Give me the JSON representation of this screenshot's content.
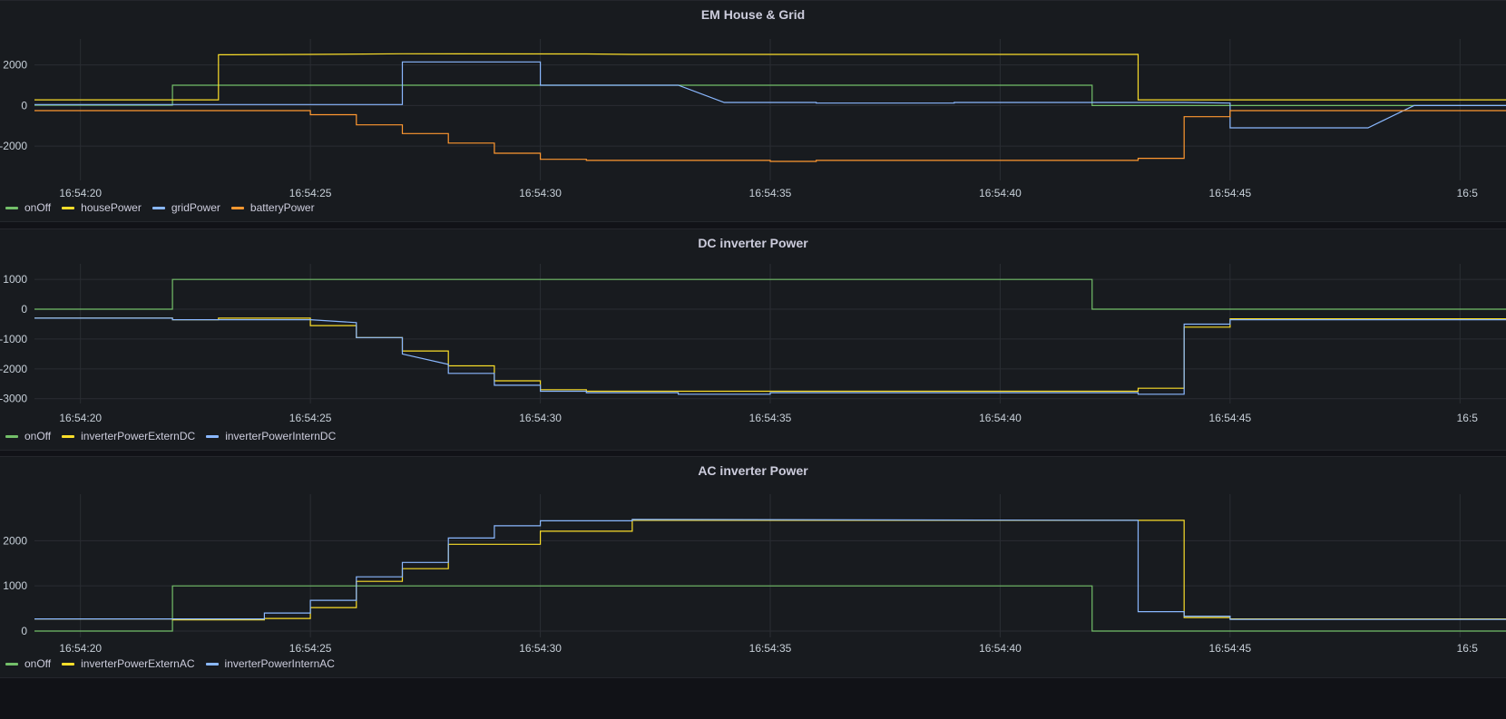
{
  "chart_data": [
    {
      "type": "line",
      "title": "EM House & Grid",
      "yticks": [
        2000,
        0,
        -2000
      ],
      "ylim": [
        -3600,
        3100
      ],
      "xticks": [
        "16:54:20",
        "16:54:25",
        "16:54:30",
        "16:54:35",
        "16:54:40",
        "16:54:45",
        "16:5"
      ],
      "grid": true,
      "legend_position": "bottom-left",
      "series": [
        {
          "name": "onOff",
          "color": "#73bf69",
          "step": true,
          "points": [
            [
              19,
              20
            ],
            [
              22,
              20
            ],
            [
              22,
              1000
            ],
            [
              42,
              1000
            ],
            [
              42,
              0
            ],
            [
              51,
              0
            ]
          ]
        },
        {
          "name": "housePower",
          "color": "#fade2a",
          "step": true,
          "points": [
            [
              19,
              280
            ],
            [
              23,
              280
            ],
            [
              23,
              2500
            ],
            [
              25,
              2520
            ],
            [
              27,
              2550
            ],
            [
              31,
              2540
            ],
            [
              32,
              2520
            ],
            [
              43,
              2520
            ],
            [
              43,
              280
            ],
            [
              51,
              280
            ]
          ]
        },
        {
          "name": "gridPower",
          "color": "#8ab8ff",
          "step": true,
          "points": [
            [
              19,
              50
            ],
            [
              22,
              50
            ],
            [
              27,
              50
            ],
            [
              27,
              2150
            ],
            [
              30,
              2150
            ],
            [
              30,
              1000
            ],
            [
              33,
              1000
            ],
            [
              34,
              150
            ],
            [
              36,
              150
            ],
            [
              36,
              120
            ],
            [
              39,
              120
            ],
            [
              39,
              150
            ],
            [
              44,
              150
            ],
            [
              45,
              120
            ],
            [
              45,
              -1100
            ],
            [
              48,
              -1100
            ],
            [
              49,
              0
            ],
            [
              51,
              0
            ]
          ]
        },
        {
          "name": "batteryPower",
          "color": "#ff9830",
          "step": true,
          "points": [
            [
              19,
              -250
            ],
            [
              25,
              -250
            ],
            [
              25,
              -450
            ],
            [
              26,
              -450
            ],
            [
              26,
              -950
            ],
            [
              27,
              -950
            ],
            [
              27,
              -1380
            ],
            [
              28,
              -1380
            ],
            [
              28,
              -1850
            ],
            [
              29,
              -1850
            ],
            [
              29,
              -2350
            ],
            [
              30,
              -2350
            ],
            [
              30,
              -2650
            ],
            [
              31,
              -2650
            ],
            [
              31,
              -2700
            ],
            [
              35,
              -2700
            ],
            [
              35,
              -2750
            ],
            [
              36,
              -2750
            ],
            [
              36,
              -2700
            ],
            [
              43,
              -2700
            ],
            [
              43,
              -2600
            ],
            [
              44,
              -2600
            ],
            [
              44,
              -550
            ],
            [
              45,
              -550
            ],
            [
              45,
              -250
            ],
            [
              51,
              -250
            ]
          ]
        }
      ]
    },
    {
      "type": "line",
      "title": "DC inverter Power",
      "yticks": [
        1000,
        0,
        -1000,
        -2000,
        -3000
      ],
      "ylim": [
        -3100,
        1400
      ],
      "xticks": [
        "16:54:20",
        "16:54:25",
        "16:54:30",
        "16:54:35",
        "16:54:40",
        "16:54:45",
        "16:5"
      ],
      "grid": true,
      "legend_position": "bottom-left",
      "series": [
        {
          "name": "onOff",
          "color": "#73bf69",
          "step": true,
          "points": [
            [
              19,
              0
            ],
            [
              22,
              0
            ],
            [
              22,
              1000
            ],
            [
              42,
              1000
            ],
            [
              42,
              0
            ],
            [
              51,
              0
            ]
          ]
        },
        {
          "name": "inverterPowerExternDC",
          "color": "#fade2a",
          "step": true,
          "points": [
            [
              19,
              -300
            ],
            [
              22,
              -300
            ],
            [
              22,
              -350
            ],
            [
              23,
              -350
            ],
            [
              23,
              -300
            ],
            [
              25,
              -300
            ],
            [
              25,
              -550
            ],
            [
              26,
              -550
            ],
            [
              26,
              -950
            ],
            [
              27,
              -950
            ],
            [
              27,
              -1400
            ],
            [
              28,
              -1400
            ],
            [
              28,
              -1900
            ],
            [
              29,
              -1900
            ],
            [
              29,
              -2400
            ],
            [
              30,
              -2400
            ],
            [
              30,
              -2700
            ],
            [
              31,
              -2700
            ],
            [
              31,
              -2750
            ],
            [
              43,
              -2750
            ],
            [
              43,
              -2650
            ],
            [
              44,
              -2650
            ],
            [
              44,
              -600
            ],
            [
              45,
              -600
            ],
            [
              45,
              -320
            ],
            [
              51,
              -320
            ]
          ]
        },
        {
          "name": "inverterPowerInternDC",
          "color": "#8ab8ff",
          "step": true,
          "points": [
            [
              19,
              -300
            ],
            [
              22,
              -300
            ],
            [
              22,
              -350
            ],
            [
              25,
              -350
            ],
            [
              26,
              -450
            ],
            [
              26,
              -950
            ],
            [
              27,
              -950
            ],
            [
              27,
              -1500
            ],
            [
              28,
              -1850
            ],
            [
              28,
              -2150
            ],
            [
              29,
              -2150
            ],
            [
              29,
              -2550
            ],
            [
              30,
              -2550
            ],
            [
              30,
              -2750
            ],
            [
              31,
              -2750
            ],
            [
              31,
              -2800
            ],
            [
              33,
              -2800
            ],
            [
              33,
              -2850
            ],
            [
              35,
              -2850
            ],
            [
              35,
              -2800
            ],
            [
              43,
              -2800
            ],
            [
              43,
              -2850
            ],
            [
              44,
              -2850
            ],
            [
              44,
              -500
            ],
            [
              45,
              -500
            ],
            [
              45,
              -350
            ],
            [
              51,
              -350
            ]
          ]
        }
      ]
    },
    {
      "type": "line",
      "title": "AC inverter Power",
      "yticks": [
        2000,
        1000,
        0
      ],
      "ylim": [
        -100,
        2950
      ],
      "xticks": [
        "16:54:20",
        "16:54:25",
        "16:54:30",
        "16:54:35",
        "16:54:40",
        "16:54:45",
        "16:5"
      ],
      "grid": true,
      "legend_position": "bottom-left",
      "series": [
        {
          "name": "onOff",
          "color": "#73bf69",
          "step": true,
          "points": [
            [
              19,
              0
            ],
            [
              22,
              0
            ],
            [
              22,
              1000
            ],
            [
              42,
              1000
            ],
            [
              42,
              0
            ],
            [
              51,
              0
            ]
          ]
        },
        {
          "name": "inverterPowerExternAC",
          "color": "#fade2a",
          "step": true,
          "points": [
            [
              19,
              270
            ],
            [
              22,
              270
            ],
            [
              22,
              250
            ],
            [
              24,
              250
            ],
            [
              24,
              280
            ],
            [
              25,
              280
            ],
            [
              25,
              520
            ],
            [
              26,
              520
            ],
            [
              26,
              1100
            ],
            [
              27,
              1100
            ],
            [
              27,
              1380
            ],
            [
              28,
              1380
            ],
            [
              28,
              1920
            ],
            [
              30,
              1920
            ],
            [
              30,
              2210
            ],
            [
              32,
              2210
            ],
            [
              32,
              2450
            ],
            [
              43,
              2450
            ],
            [
              44,
              2450
            ],
            [
              44,
              300
            ],
            [
              45,
              300
            ],
            [
              45,
              270
            ],
            [
              51,
              270
            ]
          ]
        },
        {
          "name": "inverterPowerInternAC",
          "color": "#8ab8ff",
          "step": true,
          "points": [
            [
              19,
              270
            ],
            [
              24,
              270
            ],
            [
              24,
              400
            ],
            [
              25,
              400
            ],
            [
              25,
              680
            ],
            [
              26,
              680
            ],
            [
              26,
              1200
            ],
            [
              27,
              1200
            ],
            [
              27,
              1520
            ],
            [
              28,
              1520
            ],
            [
              28,
              2060
            ],
            [
              29,
              2060
            ],
            [
              29,
              2330
            ],
            [
              30,
              2330
            ],
            [
              30,
              2440
            ],
            [
              32,
              2440
            ],
            [
              32,
              2470
            ],
            [
              43,
              2450
            ],
            [
              43,
              430
            ],
            [
              44,
              430
            ],
            [
              44,
              330
            ],
            [
              45,
              330
            ],
            [
              45,
              260
            ],
            [
              51,
              260
            ]
          ]
        }
      ]
    }
  ]
}
